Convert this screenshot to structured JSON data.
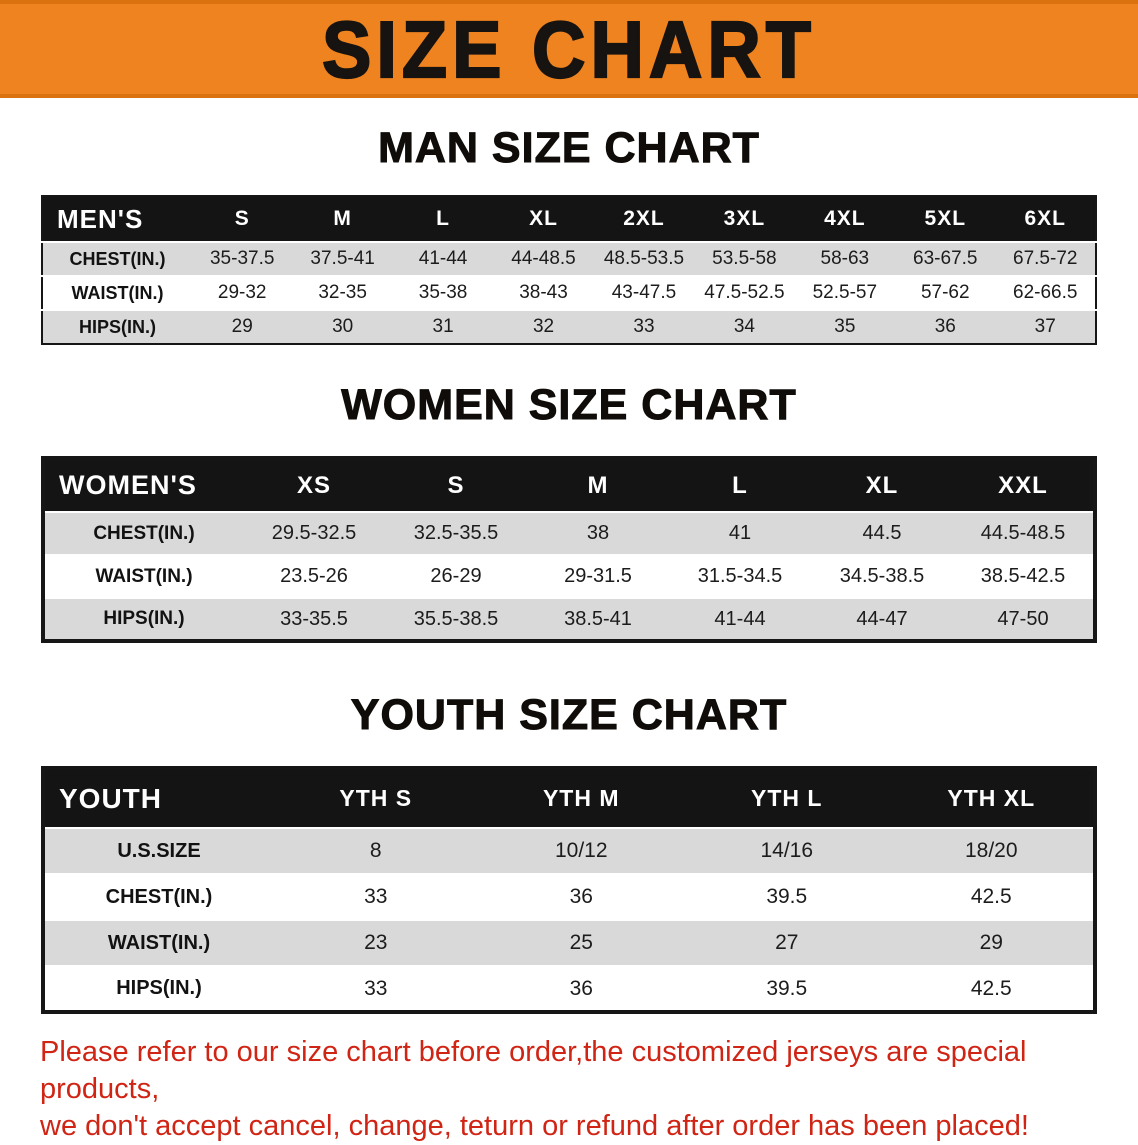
{
  "banner": {
    "title": "SIZE CHART"
  },
  "colors": {
    "banner_orange": "#ef831f",
    "header_black": "#141414",
    "row_gray": "#d9d9d9",
    "disclaimer_red": "#d02414"
  },
  "sections": [
    {
      "heading": "MAN SIZE CHART",
      "table": {
        "corner_label": "MEN'S",
        "columns": [
          "S",
          "M",
          "L",
          "XL",
          "2XL",
          "3XL",
          "4XL",
          "5XL",
          "6XL"
        ],
        "rows": [
          {
            "label": "CHEST(IN.)",
            "values": [
              "35-37.5",
              "37.5-41",
              "41-44",
              "44-48.5",
              "48.5-53.5",
              "53.5-58",
              "58-63",
              "63-67.5",
              "67.5-72"
            ]
          },
          {
            "label": "WAIST(IN.)",
            "values": [
              "29-32",
              "32-35",
              "35-38",
              "38-43",
              "43-47.5",
              "47.5-52.5",
              "52.5-57",
              "57-62",
              "62-66.5"
            ]
          },
          {
            "label": "HIPS(IN.)",
            "values": [
              "29",
              "30",
              "31",
              "32",
              "33",
              "34",
              "35",
              "36",
              "37"
            ]
          }
        ]
      }
    },
    {
      "heading": "WOMEN SIZE CHART",
      "table": {
        "corner_label": "WOMEN'S",
        "columns": [
          "XS",
          "S",
          "M",
          "L",
          "XL",
          "XXL"
        ],
        "rows": [
          {
            "label": "CHEST(IN.)",
            "values": [
              "29.5-32.5",
              "32.5-35.5",
              "38",
              "41",
              "44.5",
              "44.5-48.5"
            ]
          },
          {
            "label": "WAIST(IN.)",
            "values": [
              "23.5-26",
              "26-29",
              "29-31.5",
              "31.5-34.5",
              "34.5-38.5",
              "38.5-42.5"
            ]
          },
          {
            "label": "HIPS(IN.)",
            "values": [
              "33-35.5",
              "35.5-38.5",
              "38.5-41",
              "41-44",
              "44-47",
              "47-50"
            ]
          }
        ]
      }
    },
    {
      "heading": "YOUTH SIZE CHART",
      "table": {
        "corner_label": "YOUTH",
        "columns": [
          "YTH S",
          "YTH M",
          "YTH L",
          "YTH XL"
        ],
        "rows": [
          {
            "label": "U.S.SIZE",
            "values": [
              "8",
              "10/12",
              "14/16",
              "18/20"
            ]
          },
          {
            "label": "CHEST(IN.)",
            "values": [
              "33",
              "36",
              "39.5",
              "42.5"
            ]
          },
          {
            "label": "WAIST(IN.)",
            "values": [
              "23",
              "25",
              "27",
              "29"
            ]
          },
          {
            "label": "HIPS(IN.)",
            "values": [
              "33",
              "36",
              "39.5",
              "42.5"
            ]
          }
        ]
      }
    }
  ],
  "disclaimer": {
    "line1": "Please refer to our size chart before order,the customized jerseys are special products,",
    "line2": "we don't accept cancel, change, teturn or refund after order has been placed!"
  }
}
